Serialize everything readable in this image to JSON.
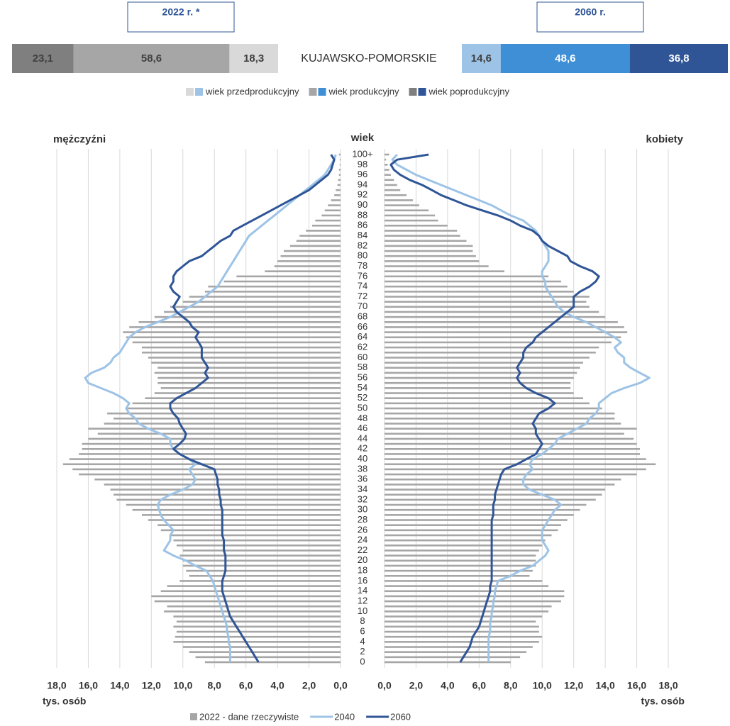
{
  "chart_data": [
    {
      "type": "structure",
      "region": "KUJAWSKO-POMORSKIE",
      "legend": [
        "wiek przedprodukcyjny",
        "wiek produkcyjny",
        "wiek poprodukcyjny"
      ],
      "xlim": [
        0,
        100
      ],
      "bars": [
        {
          "title": "2022 r. *",
          "values": [
            18.3,
            58.6,
            23.1
          ],
          "value_labels": [
            "18,3",
            "58,6",
            "23,1"
          ],
          "colors": [
            "#d9d9d9",
            "#a6a6a6",
            "#7f7f7f"
          ]
        },
        {
          "title": "2060 r.",
          "values": [
            14.6,
            48.6,
            36.8
          ],
          "value_labels": [
            "14,6",
            "48,6",
            "36,8"
          ],
          "colors": [
            "#9dc3e6",
            "#3f8fd6",
            "#2f5597"
          ]
        }
      ]
    },
    {
      "type": "pyramid",
      "ylabel": "wiek",
      "left_title": "mężczyźni",
      "right_title": "kobiety",
      "xlabel": "tys. osób",
      "grid": true,
      "xlim": [
        0,
        18
      ],
      "xticks": [
        {
          "value": 0,
          "label": "0,0"
        },
        {
          "value": 2,
          "label": "2,0"
        },
        {
          "value": 4,
          "label": "4,0"
        },
        {
          "value": 6,
          "label": "6,0"
        },
        {
          "value": 8,
          "label": "8,0"
        },
        {
          "value": 10,
          "label": "10,0"
        },
        {
          "value": 12,
          "label": "12,0"
        },
        {
          "value": 14,
          "label": "14,0"
        },
        {
          "value": 16,
          "label": "16,0"
        },
        {
          "value": 18,
          "label": "18,0"
        }
      ],
      "categories": [
        "0",
        null,
        "2",
        null,
        "4",
        null,
        "6",
        null,
        "8",
        null,
        "10",
        null,
        "12",
        null,
        "14",
        null,
        "16",
        null,
        "18",
        null,
        "20",
        null,
        "22",
        null,
        "24",
        null,
        "26",
        null,
        "28",
        null,
        "30",
        null,
        "32",
        null,
        "34",
        null,
        "36",
        null,
        "38",
        null,
        "40",
        null,
        "42",
        null,
        "44",
        null,
        "46",
        null,
        "48",
        null,
        "50",
        null,
        "52",
        null,
        "54",
        null,
        "56",
        null,
        "58",
        null,
        "60",
        null,
        "62",
        null,
        "64",
        null,
        "66",
        null,
        "68",
        null,
        "70",
        null,
        "72",
        null,
        "74",
        null,
        "76",
        null,
        "78",
        null,
        "80",
        null,
        "82",
        null,
        "84",
        null,
        "86",
        null,
        "88",
        null,
        "90",
        null,
        "92",
        null,
        "94",
        null,
        "96",
        null,
        "98",
        null,
        "100+"
      ],
      "series": [
        {
          "name": "2022 - dane rzeczywiste",
          "color": "#a6a6a6",
          "kind": "bar",
          "men": [
            8.6,
            9.2,
            9.6,
            10.0,
            10.6,
            10.5,
            10.4,
            10.6,
            10.4,
            10.6,
            11.2,
            11.0,
            11.8,
            12.0,
            11.4,
            11.0,
            10.2,
            9.6,
            9.8,
            10.0,
            10.0,
            10.2,
            10.0,
            10.4,
            10.6,
            10.8,
            11.4,
            11.6,
            12.2,
            12.6,
            13.2,
            13.6,
            14.2,
            14.4,
            14.6,
            15.0,
            15.6,
            16.6,
            17.0,
            17.6,
            17.2,
            16.6,
            16.4,
            16.4,
            16.0,
            15.4,
            16.0,
            15.0,
            14.4,
            14.8,
            13.6,
            13.2,
            12.4,
            11.8,
            11.4,
            11.6,
            11.6,
            11.8,
            11.6,
            12.0,
            12.2,
            12.6,
            12.6,
            13.2,
            13.6,
            13.8,
            13.4,
            12.8,
            11.8,
            11.2,
            10.8,
            10.0,
            9.6,
            8.6,
            8.4,
            7.4,
            6.6,
            4.8,
            4.2,
            4.0,
            3.8,
            3.6,
            3.2,
            2.8,
            2.6,
            2.2,
            1.8,
            1.6,
            1.2,
            1.0,
            0.8,
            0.6,
            0.4,
            0.3,
            0.2,
            0.15,
            0.1,
            0.1,
            0.05,
            0.05,
            0.1
          ],
          "women": [
            8.0,
            8.6,
            9.0,
            9.4,
            9.8,
            10.0,
            9.8,
            9.8,
            9.6,
            10.0,
            10.4,
            10.6,
            11.2,
            11.4,
            11.4,
            10.4,
            10.0,
            9.2,
            9.4,
            9.6,
            9.6,
            9.6,
            9.8,
            10.0,
            10.2,
            10.6,
            11.0,
            11.2,
            11.6,
            12.0,
            12.4,
            12.8,
            13.4,
            13.8,
            14.0,
            14.6,
            15.0,
            16.0,
            16.6,
            17.2,
            16.6,
            16.2,
            16.2,
            16.0,
            15.8,
            15.2,
            16.0,
            15.0,
            14.6,
            14.6,
            13.8,
            13.0,
            12.6,
            12.0,
            11.8,
            11.8,
            12.0,
            12.2,
            12.4,
            12.6,
            13.0,
            13.4,
            13.6,
            14.4,
            15.0,
            15.4,
            15.2,
            14.8,
            14.0,
            13.6,
            13.0,
            12.8,
            13.0,
            12.0,
            11.6,
            11.2,
            10.4,
            7.6,
            6.6,
            6.0,
            5.8,
            5.6,
            5.6,
            5.2,
            4.8,
            4.6,
            4.0,
            3.4,
            3.2,
            2.8,
            2.2,
            1.8,
            1.4,
            1.0,
            0.8,
            0.6,
            0.4,
            0.3,
            0.2,
            0.1,
            0.3
          ]
        },
        {
          "name": "2040",
          "color": "#9dc3e6",
          "kind": "line",
          "men": [
            7.0,
            7.0,
            7.0,
            7.0,
            7.1,
            7.1,
            7.2,
            7.2,
            7.3,
            7.4,
            7.5,
            7.6,
            7.7,
            7.8,
            7.9,
            8.0,
            8.1,
            8.3,
            8.5,
            9.2,
            9.8,
            10.6,
            11.2,
            11.0,
            10.8,
            10.8,
            10.6,
            10.9,
            11.2,
            11.4,
            11.5,
            11.6,
            11.4,
            10.8,
            10.0,
            9.4,
            9.2,
            9.4,
            9.6,
            9.2,
            9.6,
            10.2,
            10.6,
            10.8,
            10.8,
            11.4,
            12.2,
            12.8,
            13.0,
            13.4,
            13.6,
            13.4,
            13.8,
            14.4,
            15.2,
            16.0,
            16.2,
            15.8,
            15.0,
            14.6,
            14.4,
            14.0,
            13.8,
            13.6,
            13.4,
            13.0,
            12.4,
            11.6,
            10.8,
            10.2,
            9.6,
            9.0,
            8.6,
            8.2,
            7.8,
            7.6,
            7.4,
            7.2,
            7.0,
            6.8,
            6.6,
            6.4,
            6.2,
            6.0,
            5.8,
            5.4,
            5.0,
            4.6,
            4.2,
            3.8,
            3.4,
            3.0,
            2.6,
            2.2,
            1.8,
            1.4,
            1.0,
            0.8,
            0.6,
            0.4,
            0.3
          ],
          "women": [
            6.6,
            6.6,
            6.6,
            6.6,
            6.6,
            6.6,
            6.7,
            6.7,
            6.7,
            6.8,
            6.8,
            6.9,
            6.9,
            7.0,
            7.0,
            7.1,
            7.2,
            8.0,
            8.6,
            9.4,
            9.8,
            10.2,
            10.4,
            10.2,
            10.0,
            10.0,
            10.0,
            10.2,
            10.4,
            10.6,
            10.8,
            11.2,
            10.8,
            10.0,
            9.2,
            8.8,
            8.8,
            9.0,
            9.4,
            9.2,
            9.4,
            10.0,
            10.4,
            10.8,
            11.0,
            11.6,
            12.2,
            12.8,
            13.0,
            13.4,
            13.6,
            13.6,
            14.0,
            14.4,
            15.2,
            16.2,
            16.8,
            16.2,
            15.6,
            15.2,
            15.2,
            14.8,
            14.6,
            15.0,
            14.6,
            14.0,
            13.4,
            12.8,
            12.0,
            11.4,
            11.0,
            10.8,
            10.6,
            10.4,
            10.2,
            10.2,
            10.0,
            10.0,
            10.2,
            10.4,
            10.4,
            10.4,
            10.2,
            10.0,
            9.8,
            9.6,
            9.2,
            8.8,
            8.0,
            7.4,
            6.8,
            6.0,
            5.2,
            4.4,
            3.6,
            2.8,
            2.0,
            1.4,
            0.8,
            0.5,
            0.8
          ]
        },
        {
          "name": "2060",
          "color": "#2f5597",
          "kind": "line",
          "men": [
            5.2,
            5.4,
            5.6,
            5.8,
            6.0,
            6.2,
            6.4,
            6.6,
            6.8,
            7.0,
            7.1,
            7.2,
            7.3,
            7.4,
            7.5,
            7.5,
            7.5,
            7.4,
            7.3,
            7.3,
            7.3,
            7.3,
            7.4,
            7.4,
            7.4,
            7.5,
            7.5,
            7.5,
            7.5,
            7.5,
            7.5,
            7.6,
            7.6,
            7.7,
            7.7,
            7.8,
            7.8,
            7.9,
            8.0,
            8.8,
            9.6,
            10.2,
            10.6,
            10.2,
            9.9,
            9.8,
            10.0,
            10.2,
            10.3,
            10.6,
            10.8,
            10.8,
            10.4,
            9.8,
            9.2,
            8.8,
            8.4,
            8.6,
            8.4,
            8.6,
            8.8,
            8.8,
            8.8,
            9.0,
            9.2,
            9.0,
            9.4,
            9.6,
            10.0,
            10.4,
            10.6,
            10.4,
            10.2,
            10.6,
            10.8,
            10.6,
            10.6,
            10.4,
            10.0,
            9.6,
            8.8,
            8.4,
            8.0,
            7.6,
            7.0,
            6.8,
            6.2,
            5.6,
            5.0,
            4.4,
            3.8,
            3.2,
            2.6,
            2.0,
            1.6,
            1.2,
            0.8,
            0.6,
            0.5,
            0.4,
            0.6
          ],
          "women": [
            4.8,
            5.0,
            5.2,
            5.4,
            5.5,
            5.6,
            5.8,
            6.0,
            6.1,
            6.2,
            6.3,
            6.4,
            6.5,
            6.6,
            6.7,
            6.7,
            6.8,
            6.8,
            6.8,
            6.8,
            6.8,
            6.8,
            6.8,
            6.8,
            6.8,
            6.8,
            6.8,
            6.8,
            6.8,
            6.9,
            6.9,
            6.9,
            7.0,
            7.0,
            7.1,
            7.2,
            7.3,
            7.4,
            7.6,
            8.4,
            9.0,
            9.6,
            9.8,
            10.0,
            9.8,
            9.6,
            9.6,
            9.4,
            9.6,
            9.8,
            10.4,
            10.8,
            10.4,
            9.6,
            9.0,
            8.6,
            8.4,
            8.6,
            8.4,
            8.6,
            8.8,
            8.8,
            9.0,
            9.4,
            9.6,
            10.0,
            10.4,
            10.8,
            11.2,
            11.6,
            12.0,
            12.0,
            12.0,
            12.4,
            13.0,
            13.4,
            13.6,
            13.2,
            12.4,
            11.8,
            11.6,
            11.0,
            10.4,
            10.0,
            9.8,
            9.4,
            8.6,
            8.0,
            7.2,
            6.2,
            5.2,
            4.4,
            3.6,
            3.0,
            2.4,
            1.6,
            1.0,
            0.6,
            0.4,
            0.8,
            2.8
          ]
        }
      ]
    }
  ]
}
